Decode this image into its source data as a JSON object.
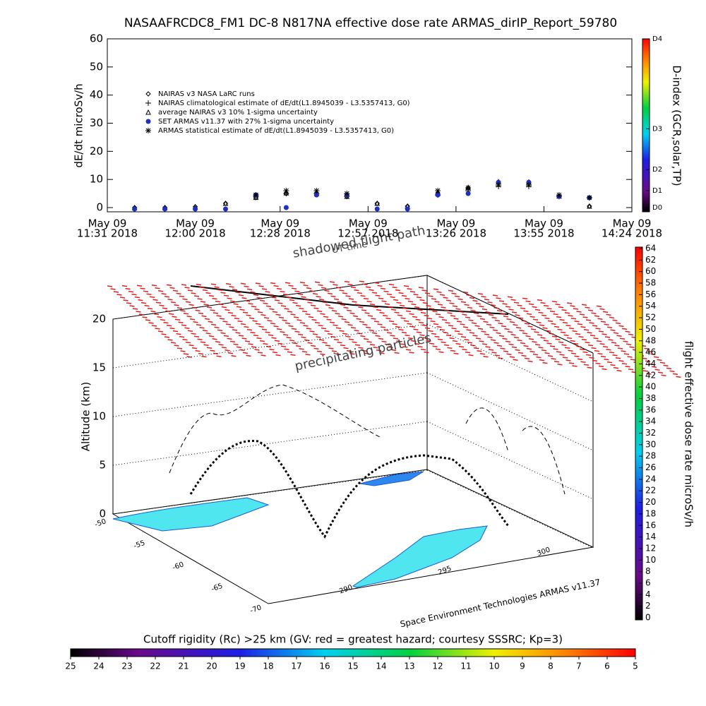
{
  "chart_data": [
    {
      "type": "scatter",
      "title": "NASAAFRCDC8_FM1 DC-8   N817NA effective dose rate ARMAS_dirIP_Report_59780",
      "ylabel": "dE/dt microSv/h",
      "ylim": [
        -1.5,
        60
      ],
      "yticks": [
        0,
        10,
        20,
        30,
        40,
        50,
        60
      ],
      "xlim": [
        "2018-05-09 11:31",
        "2018-05-09 14:24"
      ],
      "xticks": [
        {
          "value": "2018-05-09 11:31",
          "label": [
            "May 09",
            "11:31 2018"
          ]
        },
        {
          "value": "2018-05-09 12:00",
          "label": [
            "May 09",
            "12:00 2018"
          ]
        },
        {
          "value": "2018-05-09 12:28",
          "label": [
            "May 09",
            "12:28 2018"
          ]
        },
        {
          "value": "2018-05-09 12:57",
          "label": [
            "May 09",
            "12:57 2018"
          ]
        },
        {
          "value": "2018-05-09 13:26",
          "label": [
            "May 09",
            "13:26 2018"
          ]
        },
        {
          "value": "2018-05-09 13:55",
          "label": [
            "May 09",
            "13:55 2018"
          ]
        },
        {
          "value": "2018-05-09 14:24",
          "label": [
            "May 09",
            "14:24 2018"
          ]
        }
      ],
      "x": [
        "2018-05-09 11:40",
        "2018-05-09 11:50",
        "2018-05-09 12:00",
        "2018-05-09 12:10",
        "2018-05-09 12:20",
        "2018-05-09 12:30",
        "2018-05-09 12:40",
        "2018-05-09 12:50",
        "2018-05-09 13:00",
        "2018-05-09 13:10",
        "2018-05-09 13:20",
        "2018-05-09 13:30",
        "2018-05-09 13:40",
        "2018-05-09 13:50",
        "2018-05-09 14:00",
        "2018-05-09 14:10"
      ],
      "legend": "upper left",
      "series": [
        {
          "name": "NAIRAS v3 NASA LaRC runs",
          "marker": "diamond",
          "color": "#000000",
          "values": [
            0,
            0,
            0.3,
            1.5,
            3.5,
            5,
            5,
            4,
            1.5,
            0.5,
            5,
            7,
            9,
            9,
            4,
            0.5
          ]
        },
        {
          "name": "NAIRAS climatological estimate of dE/dt(L1.8945039 - L3.5357413, G0)",
          "marker": "plus",
          "color": "#000000",
          "values": [
            null,
            null,
            null,
            null,
            4,
            5,
            5,
            4,
            null,
            null,
            4.5,
            6,
            7.5,
            7.5,
            4,
            null
          ]
        },
        {
          "name": "average NAIRAS v3 10% 1-sigma uncertainty",
          "marker": "triangle",
          "color": "#000000",
          "values": [
            0,
            0,
            0.3,
            1.5,
            3.6,
            5.2,
            5.1,
            4,
            1.5,
            0.5,
            5.1,
            7.2,
            9.2,
            9.1,
            4.1,
            0.5
          ]
        },
        {
          "name": "SET ARMAS v11.37 with 27% 1-sigma uncertainty",
          "marker": "dot",
          "color": "#1f2fbf",
          "values": [
            -0.5,
            -0.5,
            -0.5,
            -0.5,
            4.5,
            0,
            4.5,
            4.5,
            -0.5,
            -0.5,
            4.5,
            5,
            9,
            9,
            4,
            3.5
          ]
        },
        {
          "name": "ARMAS statistical estimate of dE/dt(L1.8945039 - L3.5357413, G0)",
          "marker": "star",
          "color": "#000000",
          "values": [
            null,
            null,
            null,
            null,
            4.5,
            6,
            6,
            5,
            null,
            null,
            6,
            7,
            8,
            8,
            4.5,
            3.5
          ]
        }
      ],
      "colorbar": {
        "label": "D-index (GCR,solar,TP)",
        "ticks": [
          {
            "value": 0,
            "label": "D0"
          },
          {
            "value": 6,
            "label": "D1"
          },
          {
            "value": 13.5,
            "label": "D2"
          },
          {
            "value": 28,
            "label": "D3"
          },
          {
            "value": 60,
            "label": "D4"
          }
        ]
      }
    },
    {
      "type": "surface3d",
      "zlabel": "Altitude (km)",
      "zlim": [
        0,
        20
      ],
      "zticks": [
        0,
        5,
        10,
        15,
        20
      ],
      "annotations": [
        "shadowed flight path",
        "UT time",
        "precipitating particles"
      ],
      "credit": "Space Environment Technologies ARMAS v11.37",
      "latticks": [
        -50,
        -55,
        -60,
        -65,
        -70
      ],
      "lonticks": [
        290,
        295,
        300
      ],
      "colorbar": {
        "label": "flight effective dose rate microSv/h",
        "lim": [
          0,
          64
        ],
        "ticks": [
          0,
          2,
          4,
          6,
          8,
          10,
          12,
          14,
          16,
          18,
          20,
          22,
          24,
          26,
          28,
          30,
          32,
          34,
          36,
          38,
          40,
          42,
          44,
          46,
          48,
          50,
          52,
          54,
          56,
          58,
          60,
          62,
          64
        ]
      }
    },
    {
      "type": "colorbar",
      "title": "Cutoff rigidity (Rc) >25 km (GV: red = greatest hazard; courtesy SSSRC; Kp=3)",
      "lim": [
        25,
        5
      ],
      "ticks": [
        25,
        24,
        23,
        22,
        21,
        20,
        19,
        18,
        17,
        16,
        15,
        14,
        13,
        12,
        11,
        10,
        9,
        8,
        7,
        6,
        5
      ]
    }
  ]
}
